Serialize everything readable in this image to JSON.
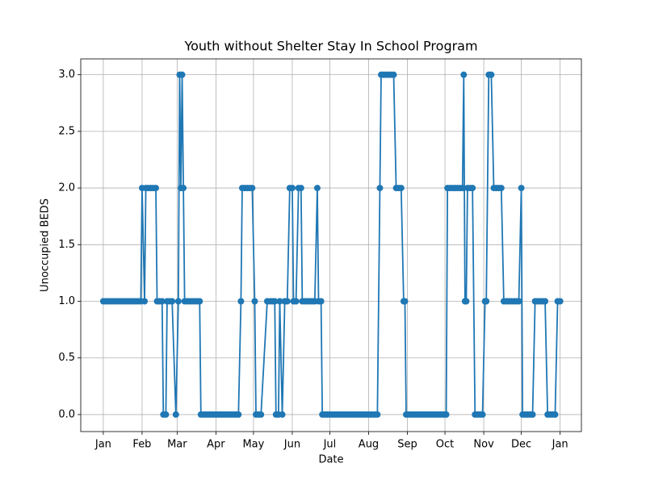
{
  "chart_data": {
    "type": "line",
    "title": "Youth without Shelter Stay In School Program",
    "xlabel": "Date",
    "ylabel": "Unoccupied BEDS",
    "color": "#1f77b4",
    "grid": true,
    "x": [
      0,
      2,
      4,
      6,
      8,
      10,
      12,
      14,
      16,
      18,
      20,
      22,
      24,
      26,
      28,
      30,
      31,
      33,
      34,
      36,
      38,
      40,
      42,
      43,
      45,
      47,
      48,
      50,
      51,
      53,
      55,
      58,
      60,
      61,
      62,
      63,
      64,
      65,
      67,
      69,
      71,
      73,
      75,
      77,
      78,
      80,
      82,
      84,
      86,
      88,
      90,
      92,
      94,
      96,
      98,
      100,
      102,
      104,
      106,
      108,
      110,
      111,
      113,
      115,
      117,
      119,
      121,
      122,
      124,
      126,
      131,
      133,
      135,
      137,
      138,
      140,
      141,
      143,
      145,
      147,
      149,
      151,
      152,
      154,
      156,
      158,
      159,
      161,
      163,
      165,
      167,
      169,
      171,
      172,
      174,
      175,
      177,
      179,
      181,
      183,
      185,
      187,
      189,
      191,
      193,
      195,
      197,
      199,
      201,
      203,
      205,
      207,
      209,
      211,
      213,
      215,
      217,
      219,
      221,
      222,
      224,
      226,
      228,
      230,
      232,
      234,
      236,
      238,
      240,
      241,
      242,
      244,
      246,
      248,
      250,
      252,
      254,
      256,
      258,
      260,
      262,
      264,
      266,
      268,
      270,
      272,
      274,
      275,
      277,
      279,
      281,
      283,
      285,
      287,
      288,
      289,
      290,
      291,
      293,
      295,
      297,
      299,
      301,
      303,
      305,
      306,
      308,
      310,
      312,
      314,
      316,
      318,
      320,
      322,
      324,
      326,
      328,
      330,
      332,
      334,
      335,
      337,
      339,
      341,
      343,
      345,
      347,
      349,
      351,
      353,
      355,
      357,
      359,
      361,
      363,
      365
    ],
    "values": [
      1,
      1,
      1,
      1,
      1,
      1,
      1,
      1,
      1,
      1,
      1,
      1,
      1,
      1,
      1,
      1,
      2,
      1,
      2,
      2,
      2,
      2,
      2,
      1,
      1,
      1,
      0,
      0,
      1,
      1,
      1,
      0,
      1,
      3,
      2,
      3,
      2,
      1,
      1,
      1,
      1,
      1,
      1,
      1,
      0,
      0,
      0,
      0,
      0,
      0,
      0,
      0,
      0,
      0,
      0,
      0,
      0,
      0,
      0,
      0,
      1,
      2,
      2,
      2,
      2,
      2,
      1,
      0,
      0,
      0,
      1,
      1,
      1,
      1,
      0,
      0,
      1,
      0,
      1,
      1,
      2,
      2,
      1,
      1,
      2,
      2,
      1,
      1,
      1,
      1,
      1,
      1,
      2,
      1,
      1,
      0,
      0,
      0,
      0,
      0,
      0,
      0,
      0,
      0,
      0,
      0,
      0,
      0,
      0,
      0,
      0,
      0,
      0,
      0,
      0,
      0,
      0,
      0,
      2,
      3,
      3,
      3,
      3,
      3,
      3,
      2,
      2,
      2,
      1,
      1,
      0,
      0,
      0,
      0,
      0,
      0,
      0,
      0,
      0,
      0,
      0,
      0,
      0,
      0,
      0,
      0,
      0,
      2,
      2,
      2,
      2,
      2,
      2,
      2,
      3,
      1,
      1,
      2,
      2,
      2,
      0,
      0,
      0,
      0,
      1,
      1,
      3,
      3,
      2,
      2,
      2,
      2,
      1,
      1,
      1,
      1,
      1,
      1,
      1,
      2,
      0,
      0,
      0,
      0,
      0,
      1,
      1,
      1,
      1,
      1,
      0,
      0,
      0,
      0,
      1,
      1
    ],
    "xlim": [
      -18,
      382
    ],
    "xticks": [
      {
        "value": 0,
        "label": "Jan"
      },
      {
        "value": 31,
        "label": "Feb"
      },
      {
        "value": 59,
        "label": "Mar"
      },
      {
        "value": 90,
        "label": "Apr"
      },
      {
        "value": 120,
        "label": "May"
      },
      {
        "value": 151,
        "label": "Jun"
      },
      {
        "value": 181,
        "label": "Jul"
      },
      {
        "value": 212,
        "label": "Aug"
      },
      {
        "value": 243,
        "label": "Sep"
      },
      {
        "value": 273,
        "label": "Oct"
      },
      {
        "value": 304,
        "label": "Nov"
      },
      {
        "value": 334,
        "label": "Dec"
      },
      {
        "value": 365,
        "label": "Jan"
      }
    ],
    "ylim": [
      -0.15,
      3.14
    ],
    "yticks": [
      {
        "value": 0,
        "label": "0.0"
      },
      {
        "value": 0.5,
        "label": "0.5"
      },
      {
        "value": 1,
        "label": "1.0"
      },
      {
        "value": 1.5,
        "label": "1.5"
      },
      {
        "value": 2,
        "label": "2.0"
      },
      {
        "value": 2.5,
        "label": "2.5"
      },
      {
        "value": 3,
        "label": "3.0"
      }
    ]
  }
}
